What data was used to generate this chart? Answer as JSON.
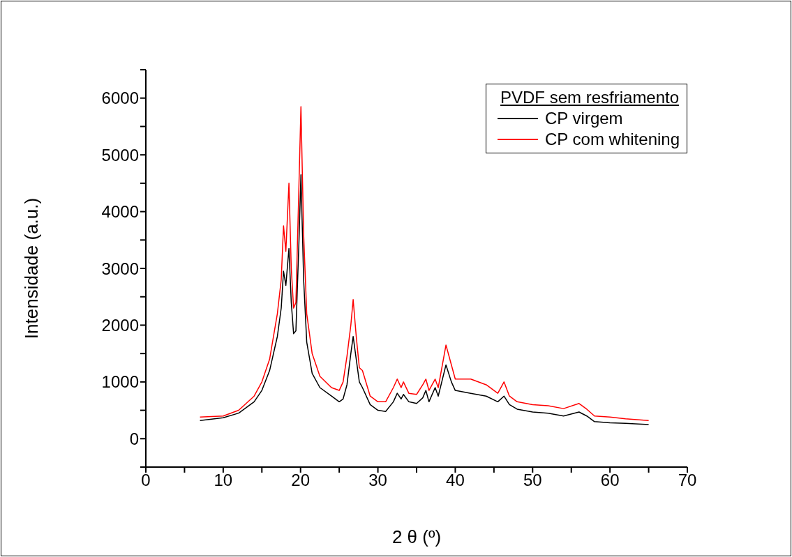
{
  "chart_data": {
    "type": "line",
    "xlabel": "2 θ (º)",
    "ylabel": "Intensidade (a.u.)",
    "legend_title": "PVDF sem resfriamento",
    "legend": "top right",
    "grid": false,
    "marker": "none",
    "line_style": "solid",
    "xlim": [
      0,
      70
    ],
    "ylim": [
      -500,
      6500
    ],
    "xticks": [
      0,
      {
        "value": 5,
        "label": null
      },
      10,
      {
        "value": 15,
        "label": null
      },
      20,
      {
        "value": 25,
        "label": null
      },
      30,
      {
        "value": 35,
        "label": null
      },
      40,
      {
        "value": 45,
        "label": null
      },
      50,
      {
        "value": 55,
        "label": null
      },
      60,
      {
        "value": 65,
        "label": null
      },
      70
    ],
    "yticks": [
      {
        "value": -500,
        "label": null
      },
      0,
      {
        "value": 500,
        "label": null
      },
      1000,
      {
        "value": 1500,
        "label": null
      },
      2000,
      {
        "value": 2500,
        "label": null
      },
      3000,
      {
        "value": 3500,
        "label": null
      },
      4000,
      {
        "value": 4500,
        "label": null
      },
      5000,
      {
        "value": 5500,
        "label": null
      },
      6000,
      {
        "value": 6500,
        "label": null
      }
    ],
    "x": [
      7,
      10,
      12,
      14,
      15,
      16,
      17,
      17.5,
      17.8,
      18.1,
      18.5,
      18.8,
      19.1,
      19.4,
      19.8,
      20.05,
      20.4,
      20.8,
      21.5,
      22.5,
      24,
      25,
      25.5,
      26,
      26.5,
      26.8,
      27.2,
      27.6,
      28,
      29,
      30,
      31,
      32,
      32.5,
      33,
      33.3,
      34,
      35,
      35.8,
      36.2,
      36.6,
      37.4,
      37.8,
      38.8,
      39.5,
      40,
      42,
      44,
      45.5,
      46.3,
      47,
      48,
      50,
      52,
      54,
      56,
      57,
      58,
      60,
      62,
      65
    ],
    "series": [
      {
        "name": "CP virgem",
        "color": "#000000",
        "values": [
          320,
          370,
          450,
          650,
          850,
          1200,
          1800,
          2300,
          2950,
          2700,
          3350,
          2400,
          1850,
          1900,
          3500,
          4650,
          2800,
          1700,
          1150,
          900,
          750,
          650,
          700,
          950,
          1500,
          1800,
          1400,
          1000,
          900,
          600,
          500,
          480,
          650,
          800,
          700,
          780,
          650,
          620,
          720,
          850,
          650,
          900,
          750,
          1300,
          1000,
          850,
          800,
          750,
          650,
          750,
          600,
          520,
          470,
          450,
          400,
          470,
          400,
          300,
          280,
          270,
          250
        ]
      },
      {
        "name": "CP com whitening",
        "color": "#ff0000",
        "values": [
          380,
          400,
          500,
          750,
          1000,
          1400,
          2200,
          2800,
          3750,
          3300,
          4500,
          3000,
          2300,
          2400,
          4500,
          5850,
          3600,
          2200,
          1500,
          1100,
          900,
          850,
          1000,
          1450,
          2000,
          2450,
          1800,
          1250,
          1200,
          750,
          650,
          650,
          900,
          1050,
          900,
          1000,
          800,
          780,
          950,
          1050,
          850,
          1050,
          900,
          1650,
          1300,
          1050,
          1050,
          950,
          800,
          1000,
          750,
          650,
          600,
          580,
          530,
          620,
          520,
          400,
          380,
          350,
          320
        ]
      }
    ]
  }
}
